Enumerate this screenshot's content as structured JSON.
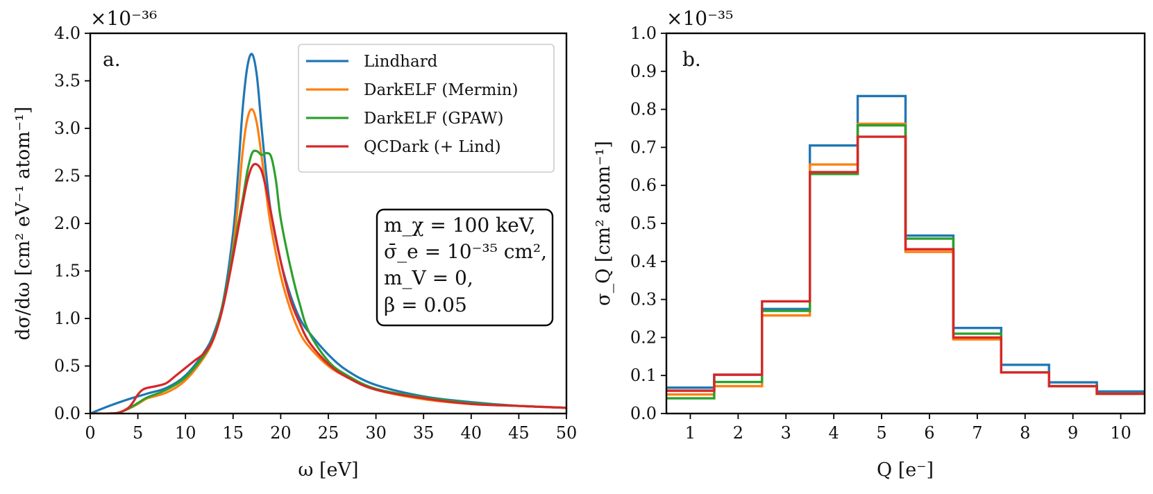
{
  "chart_data": [
    {
      "type": "line",
      "panel_label": "a.",
      "xlabel": "ω [eV]",
      "ylabel": "dσ/dω [cm² eV⁻¹ atom⁻¹]",
      "y_exponent": "×10⁻³⁶",
      "xlim": [
        0,
        50
      ],
      "ylim": [
        0,
        4.0
      ],
      "xticks": [
        0,
        5,
        10,
        15,
        20,
        25,
        30,
        35,
        40,
        45,
        50
      ],
      "yticks": [
        "0.0",
        "0.5",
        "1.0",
        "1.5",
        "2.0",
        "2.5",
        "3.0",
        "3.5",
        "4.0"
      ],
      "legend_position": "top-right",
      "annotation": [
        "m_χ = 100 keV,",
        "σ̄_e = 10⁻³⁵ cm²,",
        "m_V = 0,",
        "β = 0.05"
      ],
      "series": [
        {
          "name": "Lindhard",
          "color": "#1f77b4",
          "x": [
            0,
            2,
            4,
            6,
            8,
            10,
            12,
            13,
            14,
            15,
            15.5,
            16,
            16.5,
            17,
            17.5,
            18,
            18.5,
            19,
            20,
            21,
            22,
            23,
            25,
            27,
            30,
            35,
            40,
            45,
            50
          ],
          "y": [
            0.0,
            0.08,
            0.15,
            0.21,
            0.27,
            0.4,
            0.65,
            0.85,
            1.2,
            1.9,
            2.5,
            3.2,
            3.65,
            3.78,
            3.55,
            3.0,
            2.5,
            2.1,
            1.6,
            1.25,
            1.0,
            0.85,
            0.62,
            0.45,
            0.3,
            0.18,
            0.12,
            0.08,
            0.06
          ]
        },
        {
          "name": "DarkELF (Mermin)",
          "color": "#ff7f0e",
          "x": [
            0,
            2,
            3,
            4,
            5,
            6,
            8,
            10,
            12,
            13,
            14,
            15,
            15.5,
            16,
            16.5,
            17,
            17.5,
            18,
            18.5,
            19,
            20,
            21,
            22,
            23,
            25,
            27,
            30,
            35,
            40,
            45,
            50
          ],
          "y": [
            0.0,
            0.0,
            0.01,
            0.05,
            0.1,
            0.16,
            0.22,
            0.35,
            0.6,
            0.8,
            1.15,
            1.75,
            2.2,
            2.75,
            3.1,
            3.2,
            3.05,
            2.7,
            2.3,
            1.95,
            1.45,
            1.1,
            0.85,
            0.7,
            0.5,
            0.38,
            0.25,
            0.15,
            0.1,
            0.08,
            0.06
          ]
        },
        {
          "name": "DarkELF (GPAW)",
          "color": "#2ca02c",
          "x": [
            0,
            2,
            3,
            4,
            5,
            6,
            8,
            10,
            12,
            13,
            14,
            15,
            16,
            16.5,
            17,
            17.5,
            18,
            18.5,
            19,
            19.5,
            20,
            21,
            22,
            23,
            25,
            27,
            30,
            35,
            40,
            45,
            50
          ],
          "y": [
            0.0,
            0.0,
            0.01,
            0.05,
            0.11,
            0.17,
            0.25,
            0.38,
            0.62,
            0.82,
            1.18,
            1.7,
            2.25,
            2.55,
            2.74,
            2.76,
            2.72,
            2.74,
            2.7,
            2.45,
            2.05,
            1.55,
            1.15,
            0.85,
            0.55,
            0.4,
            0.26,
            0.17,
            0.11,
            0.08,
            0.06
          ]
        },
        {
          "name": "QCDark (+ Lind)",
          "color": "#d62728",
          "x": [
            0,
            2,
            3,
            4,
            4.5,
            5,
            5.5,
            6,
            7,
            8,
            9,
            10,
            11,
            12,
            13,
            14,
            15,
            16,
            16.5,
            17,
            17.5,
            18,
            18.5,
            19,
            20,
            21,
            22,
            23,
            25,
            27,
            30,
            35,
            40,
            45,
            50
          ],
          "y": [
            0.0,
            0.0,
            0.01,
            0.06,
            0.12,
            0.2,
            0.25,
            0.27,
            0.29,
            0.32,
            0.4,
            0.48,
            0.56,
            0.64,
            0.8,
            1.15,
            1.65,
            2.2,
            2.45,
            2.6,
            2.62,
            2.55,
            2.35,
            2.1,
            1.6,
            1.2,
            0.95,
            0.75,
            0.52,
            0.38,
            0.25,
            0.16,
            0.1,
            0.08,
            0.06
          ]
        }
      ]
    },
    {
      "type": "bar",
      "style": "step",
      "panel_label": "b.",
      "xlabel": "Q [e⁻]",
      "ylabel": "σ_Q [cm² atom⁻¹]",
      "y_exponent": "×10⁻³⁵",
      "xlim": [
        0.5,
        10.5
      ],
      "ylim": [
        0,
        1.0
      ],
      "categories": [
        1,
        2,
        3,
        4,
        5,
        6,
        7,
        8,
        9,
        10
      ],
      "xticks": [
        1,
        2,
        3,
        4,
        5,
        6,
        7,
        8,
        9,
        10
      ],
      "yticks": [
        "0.0",
        "0.1",
        "0.2",
        "0.3",
        "0.4",
        "0.5",
        "0.6",
        "0.7",
        "0.8",
        "0.9",
        "1.0"
      ],
      "series": [
        {
          "name": "Lindhard",
          "color": "#1f77b4",
          "values": [
            0.068,
            0.102,
            0.275,
            0.705,
            0.835,
            0.468,
            0.225,
            0.128,
            0.082,
            0.058
          ]
        },
        {
          "name": "DarkELF (Mermin)",
          "color": "#ff7f0e",
          "values": [
            0.05,
            0.072,
            0.258,
            0.655,
            0.762,
            0.425,
            0.195,
            0.108,
            0.072,
            0.052
          ]
        },
        {
          "name": "DarkELF (GPAW)",
          "color": "#2ca02c",
          "values": [
            0.04,
            0.083,
            0.27,
            0.63,
            0.758,
            0.46,
            0.21,
            0.108,
            0.072,
            0.052
          ]
        },
        {
          "name": "QCDark (+ Lind)",
          "color": "#d62728",
          "values": [
            0.06,
            0.102,
            0.295,
            0.635,
            0.728,
            0.432,
            0.2,
            0.108,
            0.072,
            0.052
          ]
        }
      ]
    }
  ]
}
